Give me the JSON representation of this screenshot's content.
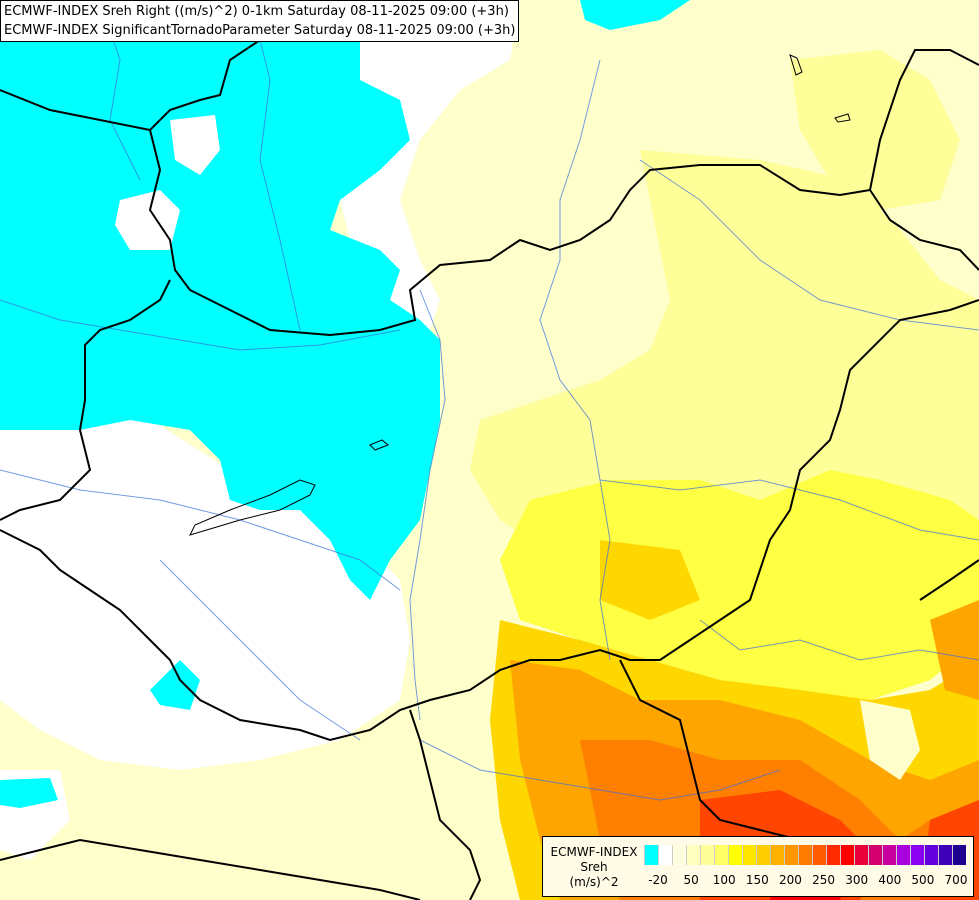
{
  "header": {
    "line1": "ECMWF-INDEX Sreh Right ((m/s)^2) 0-1km Saturday 08-11-2025 09:00 (+3h)",
    "line2": "ECMWF-INDEX SignificantTornadoParameter Saturday 08-11-2025 09:00 (+3h)"
  },
  "legend": {
    "model": "ECMWF-INDEX",
    "param": "Sreh",
    "unit": "(m/s)^2",
    "colors": [
      "#00ffff",
      "#ffffff",
      "#ffffe0",
      "#ffffc0",
      "#ffff9a",
      "#ffff66",
      "#ffff00",
      "#ffe500",
      "#ffcc00",
      "#ffb000",
      "#ff9500",
      "#ff7a00",
      "#ff5a00",
      "#ff2a00",
      "#ff0000",
      "#e8003c",
      "#d4006e",
      "#c800a0",
      "#aa00dd",
      "#8a00f0",
      "#6200dd",
      "#3d00b8",
      "#1e0090"
    ],
    "labels": [
      "-20",
      "50",
      "100",
      "150",
      "200",
      "250",
      "300",
      "400",
      "500",
      "700"
    ]
  },
  "field_colors": {
    "cyan": "#00ffff",
    "white": "#ffffff",
    "pale_yellow": "#ffffcc",
    "light_yellow": "#ffff99",
    "yellow": "#ffff44",
    "gold": "#ffd700",
    "orange": "#ffa500",
    "dark_orange": "#ff7f00",
    "red_orange": "#ff4500",
    "red": "#ff0000"
  }
}
